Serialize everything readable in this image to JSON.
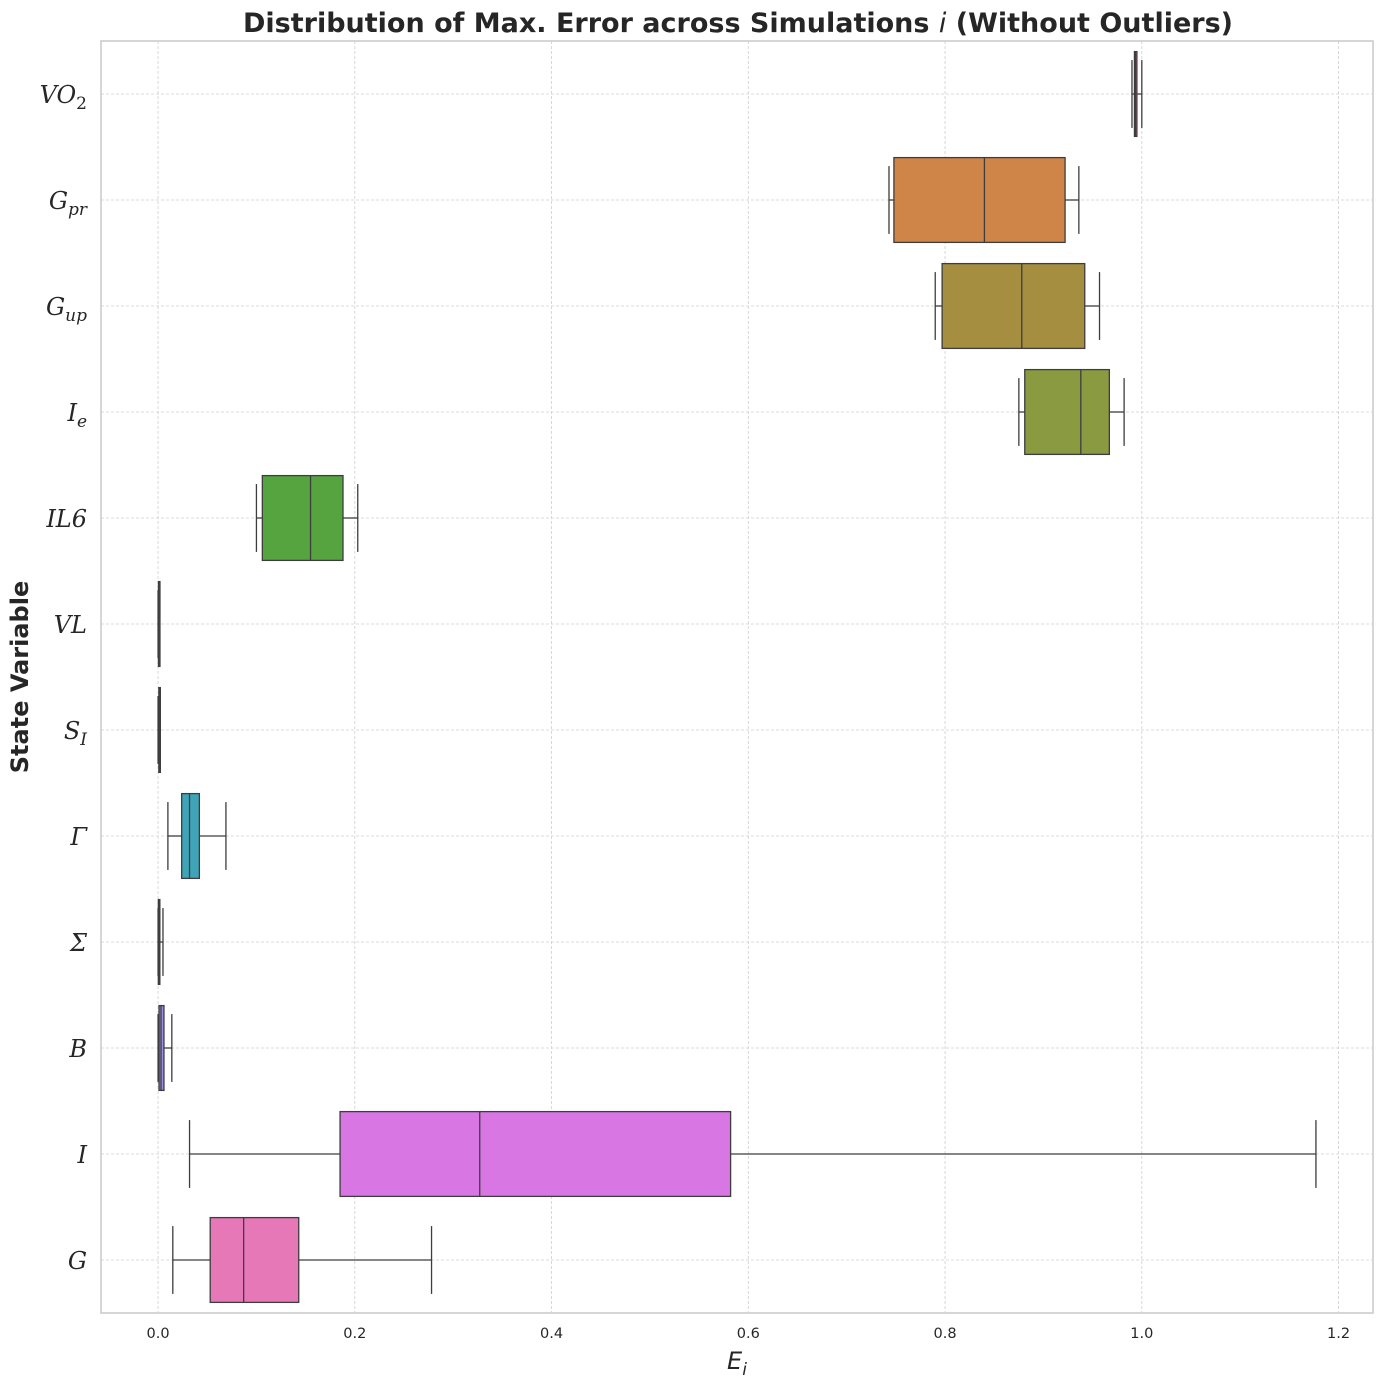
{
  "chart_data": {
    "type": "boxplot",
    "orientation": "horizontal",
    "title": {
      "prefix": "Distribution of Max. Error across Simulations ",
      "var": "i",
      "suffix": " (Without Outliers)"
    },
    "xlabel": {
      "base": "E",
      "sub": "i"
    },
    "ylabel": "State Variable",
    "xlim": [
      -0.058,
      1.235
    ],
    "xticks": [
      0.0,
      0.2,
      0.4,
      0.6,
      0.8,
      1.0,
      1.2
    ],
    "xtick_labels": [
      "0.0",
      "0.2",
      "0.4",
      "0.6",
      "0.8",
      "1.0",
      "1.2"
    ],
    "grid": true,
    "series": [
      {
        "label": {
          "base": "VO",
          "sub": "2",
          "sub_italic": false
        },
        "color": "#d66aa0",
        "whislo": 0.99,
        "q1": 0.9925,
        "median": 0.9935,
        "q3": 0.995,
        "whishi": 1.0
      },
      {
        "label": {
          "base": "G",
          "sub": "pr",
          "sub_italic": true
        },
        "color": "#cf8448",
        "whislo": 0.743,
        "q1": 0.748,
        "median": 0.84,
        "q3": 0.922,
        "whishi": 0.936
      },
      {
        "label": {
          "base": "G",
          "sub": "up",
          "sub_italic": true
        },
        "color": "#a68e40",
        "whislo": 0.79,
        "q1": 0.797,
        "median": 0.878,
        "q3": 0.942,
        "whishi": 0.957
      },
      {
        "label": {
          "base": "I",
          "sub": "e",
          "sub_italic": true
        },
        "color": "#8a9a40",
        "whislo": 0.875,
        "q1": 0.881,
        "median": 0.938,
        "q3": 0.967,
        "whishi": 0.982
      },
      {
        "label": {
          "base": "IL6",
          "sub": "",
          "sub_italic": false
        },
        "color": "#55a440",
        "whislo": 0.1,
        "q1": 0.106,
        "median": 0.155,
        "q3": 0.188,
        "whishi": 0.203
      },
      {
        "label": {
          "base": "VL",
          "sub": "",
          "sub_italic": false
        },
        "color": "#44a38a",
        "whislo": 0.0,
        "q1": 0.0004,
        "median": 0.0006,
        "q3": 0.0008,
        "whishi": 0.001
      },
      {
        "label": {
          "base": "S",
          "sub": "I",
          "sub_italic": true
        },
        "color": "#40a3a0",
        "whislo": 0.0,
        "q1": 0.0008,
        "median": 0.0012,
        "q3": 0.0016,
        "whishi": 0.002
      },
      {
        "label": {
          "base": "Γ",
          "sub": "",
          "sub_italic": false
        },
        "color": "#3ea5b8",
        "whislo": 0.01,
        "q1": 0.024,
        "median": 0.032,
        "q3": 0.042,
        "whishi": 0.069
      },
      {
        "label": {
          "base": "Σ",
          "sub": "",
          "sub_italic": false
        },
        "color": "#4da0d6",
        "whislo": 0.0,
        "q1": 0.0003,
        "median": 0.0008,
        "q3": 0.0015,
        "whishi": 0.005
      },
      {
        "label": {
          "base": "B",
          "sub": "",
          "sub_italic": false
        },
        "color": "#9c8ee0",
        "whislo": 0.0,
        "q1": 0.001,
        "median": 0.003,
        "q3": 0.006,
        "whishi": 0.014
      },
      {
        "label": {
          "base": "I",
          "sub": "",
          "sub_italic": false
        },
        "color": "#d876e3",
        "whislo": 0.032,
        "q1": 0.185,
        "median": 0.327,
        "q3": 0.582,
        "whishi": 1.177
      },
      {
        "label": {
          "base": "G",
          "sub": "",
          "sub_italic": false
        },
        "color": "#e678b8",
        "whislo": 0.015,
        "q1": 0.053,
        "median": 0.087,
        "q3": 0.143,
        "whishi": 0.278
      }
    ]
  }
}
